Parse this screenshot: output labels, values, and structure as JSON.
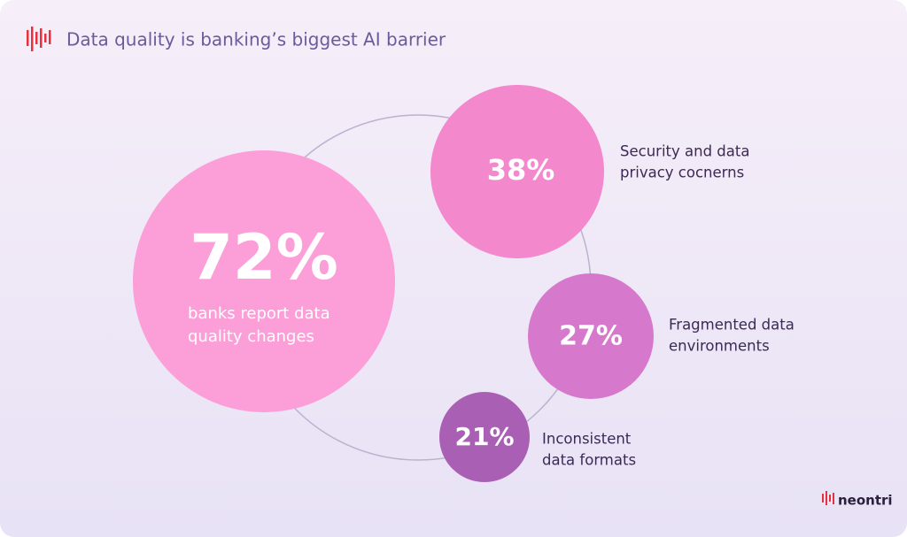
{
  "header": {
    "title": "Data quality is banking’s biggest AI barrier"
  },
  "hero": {
    "value": "72%",
    "lines": [
      "banks report data",
      "quality changes"
    ]
  },
  "stats": [
    {
      "value": "38%",
      "lines": [
        "Security and data",
        "privacy cocnerns"
      ]
    },
    {
      "value": "27%",
      "lines": [
        "Fragmented data",
        "environments"
      ]
    },
    {
      "value": "21%",
      "lines": [
        "Inconsistent",
        "data formats"
      ]
    }
  ],
  "brand": {
    "name": "neontri"
  }
}
